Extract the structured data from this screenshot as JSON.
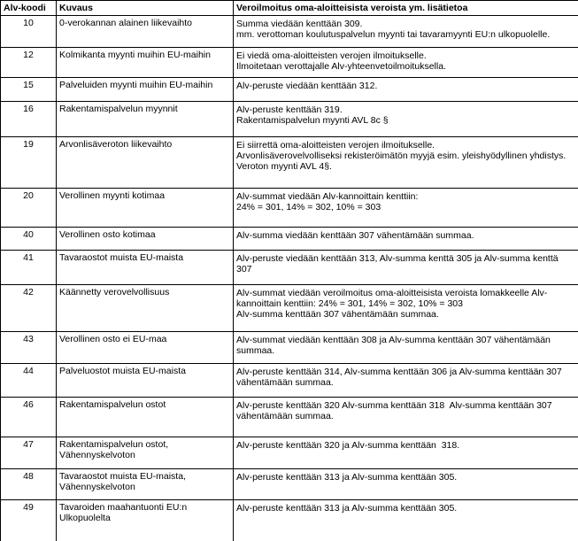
{
  "table": {
    "columns": [
      "Alv-koodi",
      "Kuvaus",
      "Veroilmoitus oma-aloitteisista veroista ym. lisätietoa"
    ],
    "rows": [
      {
        "code": "10",
        "kuvaus": "0-verokannan alainen liikevaihto",
        "info": "Summa viedään kenttään 309.\nmm. verottoman koulutuspalvelun myynti tai tavaramyynti EU:n ulkopuolelle."
      },
      {
        "code": "12",
        "kuvaus": "Kolmikanta myynti muihin EU-maihin",
        "info": "Ei viedä oma-aloitteisten verojen ilmoitukselle.\nIlmoitetaan verottajalle Alv-yhteenvetoilmoituksella."
      },
      {
        "code": "15",
        "kuvaus": "Palveluiden myynti muihin EU-maihin",
        "info": "Alv-peruste viedään kenttään 312."
      },
      {
        "code": "16",
        "kuvaus": "Rakentamispalvelun myynnit",
        "info": "Alv-peruste kenttään 319.\nRakentamispalvelun myynti AVL 8c §"
      },
      {
        "code": "19",
        "kuvaus": "Arvonlisäveroton liikevaihto",
        "info": "Ei siirrettä oma-aloitteisten verojen ilmoitukselle.\nArvonlisäverovelvolliseksi rekisteröimätön myyjä esim. yleishyödyllinen yhdistys.\nVeroton myynti AVL 4§."
      },
      {
        "code": "20",
        "kuvaus": "Verollinen myynti kotimaa",
        "info": "Alv-summat viedään Alv-kannoittain kenttiin:\n24% = 301, 14% = 302, 10% = 303"
      },
      {
        "code": "40",
        "kuvaus": "Verollinen osto kotimaa",
        "info": "Alv-summa viedään kenttään 307 vähentämään summaa."
      },
      {
        "code": "41",
        "kuvaus": "Tavaraostot muista EU-maista",
        "info": "Alv-peruste viedään kenttään 313, Alv-summa kenttä 305 ja Alv-summa kenttä 307"
      },
      {
        "code": "42",
        "kuvaus": "Käännetty verovelvollisuus",
        "info": "Alv-summat viedään veroilmoitus oma-aloitteisista veroista lomakkeelle Alv-kannoittain kenttiin: 24% = 301, 14% = 302, 10% = 303\nAlv-summa kenttään 307 vähentämään summaa."
      },
      {
        "code": "43",
        "kuvaus": "Verollinen osto ei EU-maa",
        "info": "Alv-summat viedään kenttään 308 ja Alv-summa kenttään 307 vähentämään summaa."
      },
      {
        "code": "44",
        "kuvaus": "Palveluostot muista EU-maista",
        "info": "Alv-peruste kenttään 314, Alv-summa kenttään 306 ja Alv-summa kenttään 307 vähentämään summaa."
      },
      {
        "code": "46",
        "kuvaus": "Rakentamispalvelun ostot",
        "info": "Alv-peruste kenttään 320 Alv-summa kenttään 318  Alv-summa kenttään 307 vähentämään summaa."
      },
      {
        "code": "47",
        "kuvaus": "Rakentamispalvelun ostot,\nVähennyskelvoton",
        "info": "Alv-peruste kenttään 320 ja Alv-summa kenttään  318."
      },
      {
        "code": "48",
        "kuvaus": "Tavaraostot muista EU-maista,\nVähennyskelvoton",
        "info": "Alv-peruste kenttään 313 ja Alv-summa kenttään 305."
      },
      {
        "code": "49",
        "kuvaus": "Tavaroiden maahantuonti EU:n\nUlkopuolelta",
        "info": "Alv-peruste kenttään 313 ja Alv-summa kenttään 305."
      }
    ]
  }
}
